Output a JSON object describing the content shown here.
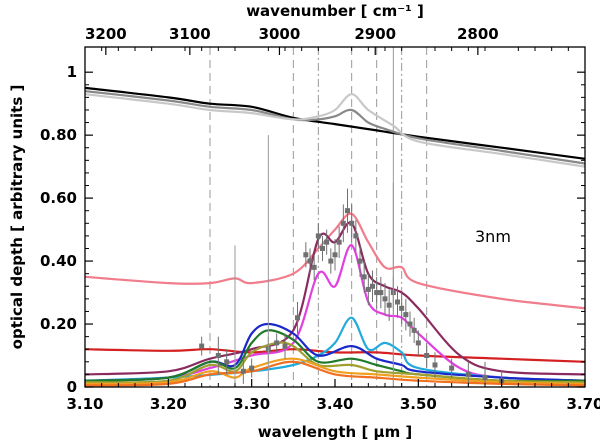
{
  "chart_data": {
    "type": "line",
    "xlabel": "wavelength [ μm ]",
    "ylabel": "optical depth [ arbitrary units ]",
    "x2label": "wavenumber [ cm⁻¹ ]",
    "xlim": [
      3.1,
      3.7
    ],
    "ylim": [
      0,
      1.08
    ],
    "x_ticks": [
      "3.10",
      "3.20",
      "3.30",
      "3.40",
      "3.50",
      "3.60",
      "3.70"
    ],
    "y_ticks": [
      "0",
      "0.20",
      "0.40",
      "0.60",
      "0.80",
      "1"
    ],
    "x2_ticks": [
      "3200",
      "3100",
      "3000",
      "2900",
      "2800"
    ],
    "annotation": "3nm",
    "grid": false,
    "vlines_dashed": [
      3.25,
      3.35,
      3.42,
      3.45,
      3.51
    ],
    "vlines_dashdot": [
      3.38,
      3.48
    ],
    "vlines_solid": [
      3.47
    ],
    "series": [
      {
        "color": "#000000",
        "x": [
          3.1,
          3.2,
          3.25,
          3.3,
          3.35,
          3.4,
          3.45,
          3.5,
          3.6,
          3.7
        ],
        "y": [
          0.95,
          0.92,
          0.9,
          0.89,
          0.855,
          0.835,
          0.815,
          0.795,
          0.76,
          0.725
        ]
      },
      {
        "color": "#888888",
        "x": [
          3.1,
          3.2,
          3.25,
          3.3,
          3.35,
          3.38,
          3.4,
          3.42,
          3.44,
          3.46,
          3.5,
          3.6,
          3.7
        ],
        "y": [
          0.94,
          0.91,
          0.89,
          0.88,
          0.85,
          0.85,
          0.86,
          0.88,
          0.84,
          0.82,
          0.79,
          0.75,
          0.71
        ]
      },
      {
        "color": "#c8c8c8",
        "x": [
          3.1,
          3.2,
          3.25,
          3.3,
          3.35,
          3.38,
          3.4,
          3.42,
          3.44,
          3.47,
          3.5,
          3.6,
          3.7
        ],
        "y": [
          0.93,
          0.9,
          0.88,
          0.87,
          0.85,
          0.86,
          0.88,
          0.93,
          0.88,
          0.83,
          0.78,
          0.74,
          0.7
        ]
      },
      {
        "color": "#f07c8c",
        "x": [
          3.1,
          3.2,
          3.25,
          3.28,
          3.3,
          3.35,
          3.38,
          3.4,
          3.42,
          3.44,
          3.46,
          3.48,
          3.5,
          3.6,
          3.7
        ],
        "y": [
          0.35,
          0.33,
          0.33,
          0.345,
          0.33,
          0.36,
          0.44,
          0.5,
          0.55,
          0.46,
          0.38,
          0.38,
          0.33,
          0.28,
          0.25
        ]
      },
      {
        "color": "#d42020",
        "x": [
          3.1,
          3.2,
          3.25,
          3.3,
          3.35,
          3.4,
          3.45,
          3.5,
          3.6,
          3.7
        ],
        "y": [
          0.12,
          0.115,
          0.12,
          0.11,
          0.12,
          0.11,
          0.11,
          0.1,
          0.09,
          0.08
        ]
      },
      {
        "color": "#8b2a60",
        "x": [
          3.1,
          3.2,
          3.25,
          3.3,
          3.35,
          3.38,
          3.4,
          3.42,
          3.44,
          3.46,
          3.48,
          3.5,
          3.55,
          3.6,
          3.7
        ],
        "y": [
          0.04,
          0.05,
          0.09,
          0.12,
          0.18,
          0.47,
          0.46,
          0.52,
          0.36,
          0.32,
          0.3,
          0.25,
          0.1,
          0.05,
          0.04
        ]
      },
      {
        "color": "#e040e0",
        "x": [
          3.1,
          3.2,
          3.25,
          3.3,
          3.35,
          3.38,
          3.4,
          3.42,
          3.44,
          3.46,
          3.48,
          3.5,
          3.55,
          3.6,
          3.7
        ],
        "y": [
          0.02,
          0.03,
          0.06,
          0.1,
          0.14,
          0.36,
          0.32,
          0.45,
          0.27,
          0.23,
          0.22,
          0.17,
          0.06,
          0.03,
          0.02
        ]
      },
      {
        "color": "#22aadd",
        "x": [
          3.1,
          3.2,
          3.3,
          3.35,
          3.38,
          3.4,
          3.42,
          3.44,
          3.46,
          3.48,
          3.5,
          3.6,
          3.7
        ],
        "y": [
          0.02,
          0.03,
          0.05,
          0.07,
          0.1,
          0.14,
          0.22,
          0.12,
          0.14,
          0.11,
          0.06,
          0.03,
          0.02
        ]
      },
      {
        "color": "#1a28c8",
        "x": [
          3.1,
          3.2,
          3.25,
          3.28,
          3.3,
          3.32,
          3.35,
          3.38,
          3.42,
          3.45,
          3.48,
          3.5,
          3.6,
          3.7
        ],
        "y": [
          0.02,
          0.03,
          0.08,
          0.07,
          0.17,
          0.2,
          0.17,
          0.1,
          0.13,
          0.09,
          0.07,
          0.05,
          0.03,
          0.02
        ]
      },
      {
        "color": "#1f7a2a",
        "x": [
          3.1,
          3.2,
          3.25,
          3.28,
          3.3,
          3.32,
          3.35,
          3.38,
          3.42,
          3.45,
          3.48,
          3.5,
          3.6,
          3.7
        ],
        "y": [
          0.02,
          0.03,
          0.08,
          0.06,
          0.14,
          0.18,
          0.15,
          0.08,
          0.09,
          0.07,
          0.05,
          0.04,
          0.02,
          0.02
        ]
      },
      {
        "color": "#a0a030",
        "x": [
          3.1,
          3.2,
          3.25,
          3.28,
          3.3,
          3.33,
          3.35,
          3.38,
          3.42,
          3.45,
          3.5,
          3.6,
          3.7
        ],
        "y": [
          0.015,
          0.02,
          0.07,
          0.05,
          0.11,
          0.14,
          0.13,
          0.07,
          0.07,
          0.05,
          0.04,
          0.02,
          0.015
        ]
      },
      {
        "color": "#f0a020",
        "x": [
          3.1,
          3.2,
          3.25,
          3.28,
          3.3,
          3.35,
          3.4,
          3.45,
          3.5,
          3.6,
          3.7
        ],
        "y": [
          0.01,
          0.015,
          0.05,
          0.03,
          0.06,
          0.09,
          0.05,
          0.04,
          0.03,
          0.015,
          0.01
        ]
      },
      {
        "color": "#f07020",
        "x": [
          3.1,
          3.2,
          3.25,
          3.3,
          3.35,
          3.4,
          3.45,
          3.5,
          3.6,
          3.7
        ],
        "y": [
          0.005,
          0.01,
          0.04,
          0.05,
          0.08,
          0.04,
          0.03,
          0.02,
          0.01,
          0.005
        ]
      }
    ],
    "observed": {
      "color": "#707070",
      "x": [
        3.24,
        3.26,
        3.27,
        3.29,
        3.3,
        3.32,
        3.33,
        3.34,
        3.355,
        3.365,
        3.37,
        3.375,
        3.38,
        3.385,
        3.39,
        3.395,
        3.4,
        3.405,
        3.41,
        3.415,
        3.42,
        3.425,
        3.43,
        3.435,
        3.44,
        3.445,
        3.45,
        3.455,
        3.46,
        3.465,
        3.47,
        3.475,
        3.48,
        3.485,
        3.49,
        3.495,
        3.5,
        3.51,
        3.52,
        3.54,
        3.56,
        3.58,
        3.6
      ],
      "y": [
        0.13,
        0.1,
        0.08,
        0.05,
        0.06,
        0.12,
        0.14,
        0.13,
        0.22,
        0.42,
        0.4,
        0.38,
        0.48,
        0.44,
        0.46,
        0.4,
        0.42,
        0.46,
        0.52,
        0.56,
        0.52,
        0.48,
        0.4,
        0.35,
        0.31,
        0.32,
        0.3,
        0.3,
        0.28,
        0.26,
        0.3,
        0.27,
        0.25,
        0.23,
        0.2,
        0.18,
        0.14,
        0.1,
        0.07,
        0.06,
        0.04,
        0.03,
        0.02
      ],
      "err": [
        0.03,
        0.06,
        0.04,
        0.04,
        0.03,
        0.04,
        0.03,
        0.04,
        0.05,
        0.04,
        0.04,
        0.04,
        0.04,
        0.04,
        0.04,
        0.04,
        0.05,
        0.05,
        0.06,
        0.07,
        0.06,
        0.05,
        0.05,
        0.05,
        0.05,
        0.05,
        0.05,
        0.05,
        0.05,
        0.05,
        0.05,
        0.05,
        0.05,
        0.05,
        0.04,
        0.04,
        0.04,
        0.04,
        0.04,
        0.03,
        0.04,
        0.05,
        0.03
      ]
    },
    "tall_errorbars": [
      {
        "x": 3.28,
        "y": 0.15,
        "err": 0.3
      },
      {
        "x": 3.32,
        "y": 0.4,
        "err": 0.4
      },
      {
        "x": 3.47,
        "y": 0.3,
        "err": 0.35
      }
    ]
  }
}
